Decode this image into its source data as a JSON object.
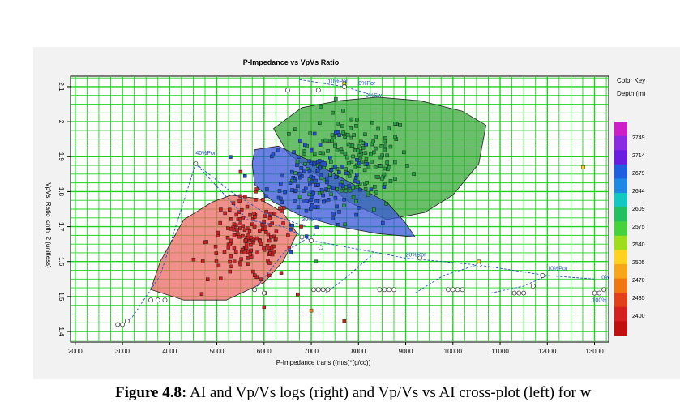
{
  "chart_data": {
    "type": "scatter",
    "title": "P-Impedance vs VpVs  Ratio",
    "xlabel": "P-Impedance  trans ((m/s)*(g/cc))",
    "ylabel": "VpVs_Ratio_cnth_2 (unitless)",
    "xlim": [
      1900,
      13300
    ],
    "ylim": [
      1.37,
      2.13
    ],
    "x_ticks": [
      2000,
      3000,
      4000,
      5000,
      6000,
      7000,
      8000,
      9000,
      10000,
      11000,
      12000,
      13000
    ],
    "x_tick_labels": [
      "2000",
      "3000",
      "4000",
      "5000",
      "6000",
      "7000",
      "8000",
      "9000",
      "10000",
      "11000",
      "12000",
      "13000"
    ],
    "y_ticks": [
      1.4,
      1.5,
      1.6,
      1.7,
      1.8,
      1.9,
      2.0,
      2.1
    ],
    "y_tick_labels": [
      "1.4",
      "1.5",
      "1.6",
      "1.7",
      "1.8",
      "1.9",
      "2",
      "2.1"
    ],
    "grid": true,
    "polygons": [
      {
        "color": "#3aa83a",
        "points": [
          [
            6200,
            1.98
          ],
          [
            6800,
            2.04
          ],
          [
            7600,
            2.06
          ],
          [
            8400,
            2.07
          ],
          [
            9300,
            2.06
          ],
          [
            10200,
            2.03
          ],
          [
            10700,
            1.99
          ],
          [
            10550,
            1.88
          ],
          [
            10000,
            1.79
          ],
          [
            9400,
            1.74
          ],
          [
            8600,
            1.72
          ],
          [
            7800,
            1.77
          ],
          [
            7100,
            1.85
          ],
          [
            6500,
            1.91
          ]
        ]
      },
      {
        "color": "#3a55d8",
        "points": [
          [
            5800,
            1.92
          ],
          [
            6300,
            1.93
          ],
          [
            7100,
            1.88
          ],
          [
            7900,
            1.82
          ],
          [
            8600,
            1.77
          ],
          [
            9000,
            1.71
          ],
          [
            9200,
            1.67
          ],
          [
            8400,
            1.68
          ],
          [
            7600,
            1.7
          ],
          [
            6800,
            1.73
          ],
          [
            6200,
            1.77
          ],
          [
            5800,
            1.82
          ],
          [
            5750,
            1.88
          ]
        ]
      },
      {
        "color": "#ec6a66",
        "points": [
          [
            4900,
            1.77
          ],
          [
            5300,
            1.79
          ],
          [
            5900,
            1.78
          ],
          [
            6400,
            1.74
          ],
          [
            6700,
            1.68
          ],
          [
            6400,
            1.6
          ],
          [
            6000,
            1.54
          ],
          [
            5200,
            1.49
          ],
          [
            4300,
            1.49
          ],
          [
            3600,
            1.52
          ],
          [
            3800,
            1.6
          ],
          [
            4300,
            1.72
          ]
        ]
      }
    ],
    "depth_clusters": [
      {
        "x": 7900,
        "y": 1.89,
        "sx": 600,
        "sy": 0.07,
        "n": 170,
        "color": "#22a040"
      },
      {
        "x": 7100,
        "y": 1.83,
        "sx": 520,
        "sy": 0.06,
        "n": 130,
        "color": "#1e4fd8"
      },
      {
        "x": 5700,
        "y": 1.66,
        "sx": 450,
        "sy": 0.06,
        "n": 160,
        "color": "#d42020"
      }
    ],
    "outlier_points": [
      {
        "x": 10550,
        "y": 1.6,
        "color": "#f0c020"
      },
      {
        "x": 6020,
        "y": 1.51,
        "color": "#ffd700"
      },
      {
        "x": 6000,
        "y": 1.47,
        "color": "#d42020"
      },
      {
        "x": 7000,
        "y": 1.46,
        "color": "#f08a00"
      },
      {
        "x": 7700,
        "y": 1.43,
        "color": "#d42020"
      },
      {
        "x": 12760,
        "y": 1.87,
        "color": "#ffd700"
      },
      {
        "x": 7700,
        "y": 2.11,
        "color": "#ffd700"
      },
      {
        "x": 7100,
        "y": 1.6,
        "color": "#22a040"
      }
    ],
    "porosity_lines": [
      {
        "points": [
          [
            3000,
            1.42
          ],
          [
            3200,
            1.44
          ],
          [
            3800,
            1.56
          ],
          [
            4550,
            1.88
          ],
          [
            5650,
            1.72
          ],
          [
            6400,
            1.7
          ],
          [
            7000,
            1.66
          ],
          [
            9000,
            1.61
          ],
          [
            10550,
            1.59
          ],
          [
            12000,
            1.56
          ],
          [
            13000,
            1.55
          ]
        ],
        "label": ""
      },
      {
        "points": [
          [
            4550,
            1.88
          ],
          [
            5300,
            1.8
          ],
          [
            6000,
            1.74
          ],
          [
            6900,
            1.7
          ]
        ],
        "label": ""
      },
      {
        "points": [
          [
            6750,
            2.12
          ],
          [
            7700,
            2.1
          ],
          [
            8200,
            2.08
          ]
        ],
        "label": ""
      },
      {
        "points": [
          [
            5800,
            1.52
          ],
          [
            6450,
            1.63
          ],
          [
            7100,
            1.68
          ]
        ],
        "label": ""
      },
      {
        "points": [
          [
            7300,
            1.51
          ],
          [
            7700,
            1.55
          ],
          [
            8300,
            1.62
          ]
        ],
        "label": ""
      },
      {
        "points": [
          [
            9200,
            1.51
          ],
          [
            9800,
            1.56
          ],
          [
            10500,
            1.59
          ]
        ],
        "label": ""
      },
      {
        "points": [
          [
            10800,
            1.51
          ],
          [
            11500,
            1.53
          ],
          [
            12000,
            1.56
          ]
        ],
        "label": ""
      }
    ],
    "porosity_circles": [
      [
        2900,
        1.42
      ],
      [
        3000,
        1.42
      ],
      [
        3100,
        1.43
      ],
      [
        4550,
        1.88
      ],
      [
        6500,
        2.09
      ],
      [
        7150,
        2.09
      ],
      [
        7700,
        2.1
      ],
      [
        3600,
        1.49
      ],
      [
        3750,
        1.49
      ],
      [
        3900,
        1.49
      ],
      [
        5800,
        1.52
      ],
      [
        6000,
        1.51
      ],
      [
        6800,
        1.67
      ],
      [
        7000,
        1.66
      ],
      [
        7200,
        1.64
      ],
      [
        7050,
        1.52
      ],
      [
        7150,
        1.52
      ],
      [
        7250,
        1.52
      ],
      [
        7350,
        1.52
      ],
      [
        8450,
        1.52
      ],
      [
        8550,
        1.52
      ],
      [
        8650,
        1.52
      ],
      [
        8750,
        1.52
      ],
      [
        9900,
        1.52
      ],
      [
        10000,
        1.52
      ],
      [
        10100,
        1.52
      ],
      [
        10200,
        1.52
      ],
      [
        11300,
        1.51
      ],
      [
        11400,
        1.51
      ],
      [
        11500,
        1.51
      ],
      [
        11700,
        1.53
      ],
      [
        9300,
        1.61
      ],
      [
        10550,
        1.59
      ],
      [
        11900,
        1.56
      ],
      [
        13000,
        1.51
      ],
      [
        13100,
        1.51
      ],
      [
        13200,
        1.52
      ]
    ],
    "annotations": [
      {
        "x": 4550,
        "y": 1.905,
        "text": "40%Por"
      },
      {
        "x": 7350,
        "y": 2.11,
        "text": "10%Por"
      },
      {
        "x": 8000,
        "y": 2.105,
        "text": "0%Por"
      },
      {
        "x": 8150,
        "y": 2.07,
        "text": "0%Sw"
      },
      {
        "x": 9000,
        "y": 1.615,
        "text": "20%Por"
      },
      {
        "x": 12000,
        "y": 1.575,
        "text": "10%Por"
      },
      {
        "x": 13150,
        "y": 1.55,
        "text": "0%"
      },
      {
        "x": 12950,
        "y": 1.485,
        "text": "100%"
      },
      {
        "x": 6800,
        "y": 1.715,
        "text": "30%Por"
      }
    ],
    "legend": {
      "title": "Color Key",
      "subtitle": "Depth (m)",
      "labels": [
        "2749",
        "2714",
        "2679",
        "2644",
        "2609",
        "2575",
        "2540",
        "2505",
        "2470",
        "2435",
        "2400"
      ],
      "colors": [
        "#cc1fc8",
        "#8a2be2",
        "#6a1de0",
        "#1e5fe0",
        "#1e88e5",
        "#12c8c0",
        "#22c060",
        "#46d23c",
        "#9fdc1c",
        "#ffd21f",
        "#f7a61a",
        "#f07612",
        "#e2401b",
        "#d42020",
        "#c01010"
      ]
    }
  },
  "caption": {
    "bold": "Figure 4.8:",
    "text": " AI and Vp/Vs logs (right) and Vp/Vs vs AI cross-plot (left) for w"
  }
}
